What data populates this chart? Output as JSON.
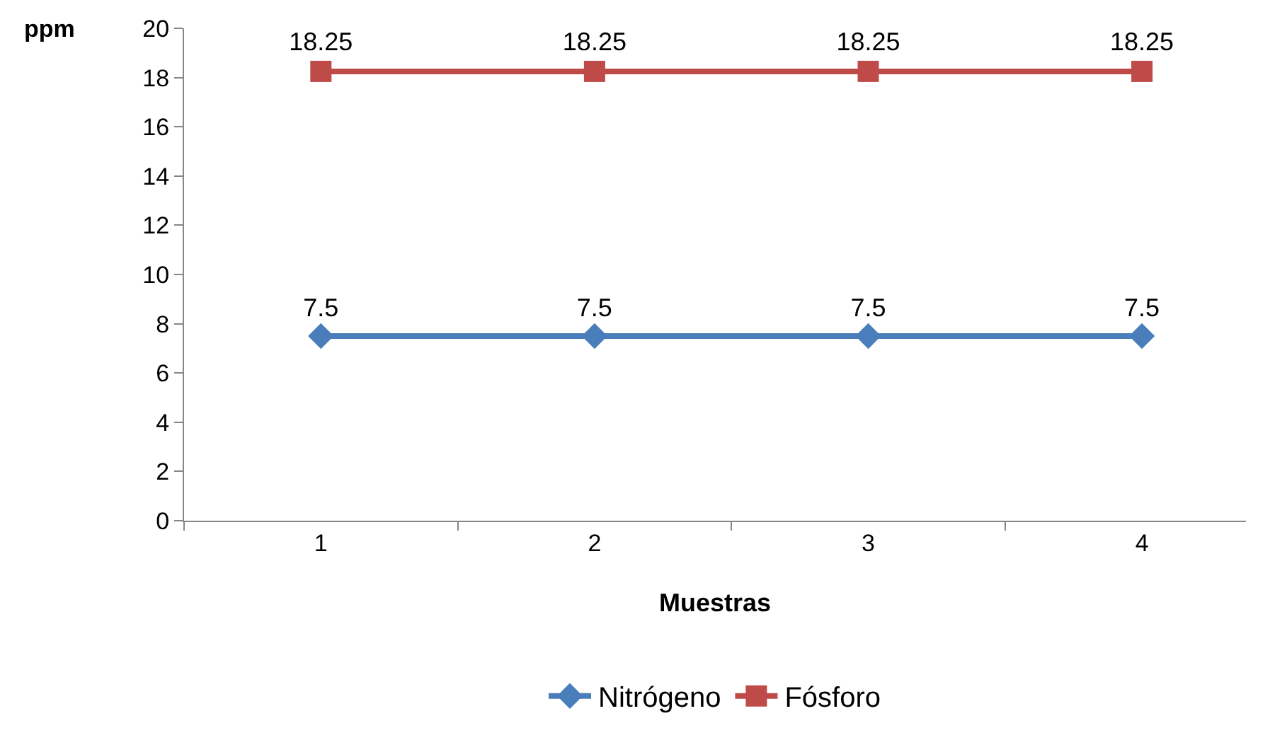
{
  "chart_data": {
    "type": "line",
    "xlabel": "Muestras",
    "ylabel": "ppm",
    "categories": [
      "1",
      "2",
      "3",
      "4"
    ],
    "series": [
      {
        "name": "Nitrógeno",
        "color": "#4a7ebb",
        "marker": "diamond",
        "values": [
          7.5,
          7.5,
          7.5,
          7.5
        ]
      },
      {
        "name": "Fósforo",
        "color": "#be4b48",
        "marker": "square",
        "values": [
          18.25,
          18.25,
          18.25,
          18.25
        ]
      }
    ],
    "ylim": [
      0,
      20
    ],
    "yticks": [
      0,
      2,
      4,
      6,
      8,
      10,
      12,
      14,
      16,
      18,
      20
    ],
    "data_labels": true,
    "grid": false,
    "legend": "bottom",
    "line_style": "solid"
  }
}
